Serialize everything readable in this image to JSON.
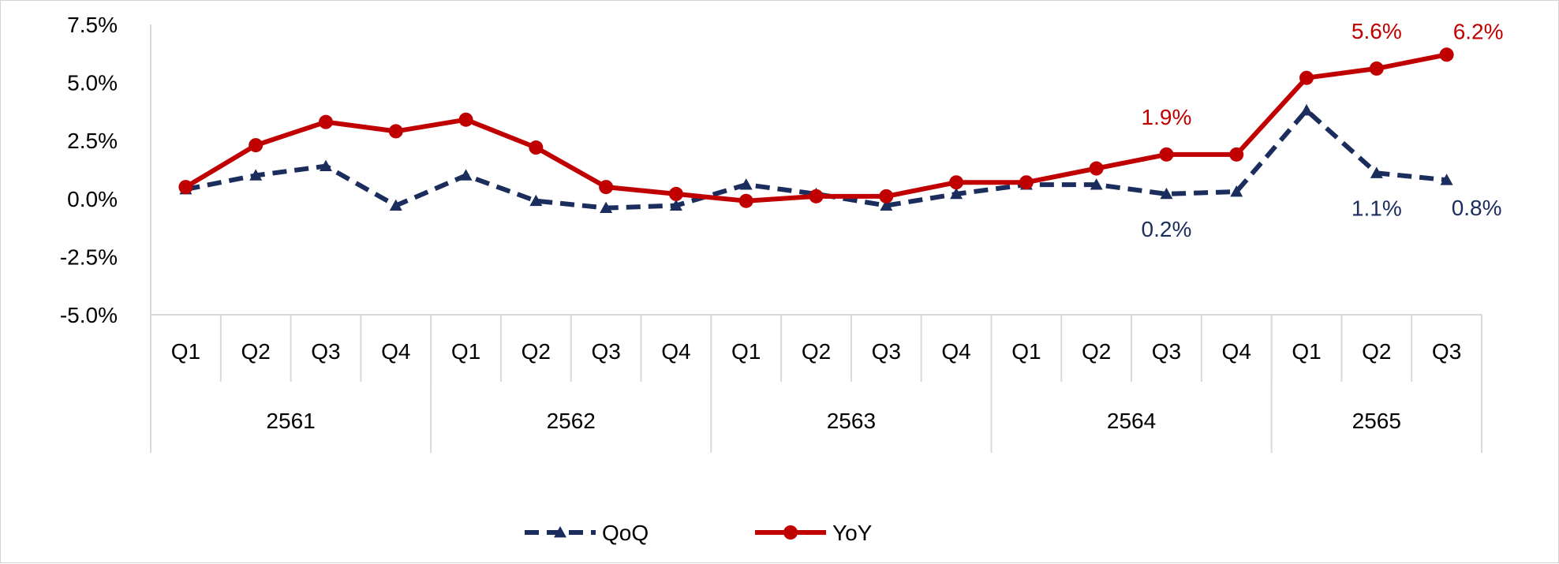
{
  "chart_data": {
    "type": "line",
    "title": "",
    "xlabel": "",
    "ylabel": "",
    "ylim": [
      -5.0,
      7.5
    ],
    "yticks": [
      "7.5%",
      "5.0%",
      "2.5%",
      "0.0%",
      "-2.5%",
      "-5.0%"
    ],
    "ytick_values": [
      7.5,
      5.0,
      2.5,
      0.0,
      -2.5,
      -5.0
    ],
    "grid": false,
    "legend_position": "bottom",
    "categories": [
      "Q1",
      "Q2",
      "Q3",
      "Q4",
      "Q1",
      "Q2",
      "Q3",
      "Q4",
      "Q1",
      "Q2",
      "Q3",
      "Q4",
      "Q1",
      "Q2",
      "Q3",
      "Q4",
      "Q1",
      "Q2",
      "Q3"
    ],
    "groups": [
      {
        "label": "2561",
        "count": 4
      },
      {
        "label": "2562",
        "count": 4
      },
      {
        "label": "2563",
        "count": 4
      },
      {
        "label": "2564",
        "count": 4
      },
      {
        "label": "2565",
        "count": 3
      }
    ],
    "series": [
      {
        "name": "QoQ",
        "color": "#1b2d5c",
        "style": "dashed",
        "marker": "triangle",
        "values": [
          0.4,
          1.0,
          1.4,
          -0.3,
          1.0,
          -0.1,
          -0.4,
          -0.3,
          0.6,
          0.2,
          -0.3,
          0.2,
          0.6,
          0.6,
          0.2,
          0.3,
          3.8,
          1.1,
          0.8
        ],
        "labels": [
          {
            "index": 14,
            "text": "0.2%"
          },
          {
            "index": 17,
            "text": "1.1%"
          },
          {
            "index": 18,
            "text": "0.8%"
          }
        ]
      },
      {
        "name": "YoY",
        "color": "#c00000",
        "style": "solid",
        "marker": "circle",
        "values": [
          0.5,
          2.3,
          3.3,
          2.9,
          3.4,
          2.2,
          0.5,
          0.2,
          -0.1,
          0.1,
          0.1,
          0.7,
          0.7,
          1.3,
          1.9,
          1.9,
          5.2,
          5.6,
          6.2
        ],
        "labels": [
          {
            "index": 14,
            "text": "1.9%"
          },
          {
            "index": 17,
            "text": "5.6%"
          },
          {
            "index": 18,
            "text": "6.2%"
          }
        ]
      }
    ]
  }
}
